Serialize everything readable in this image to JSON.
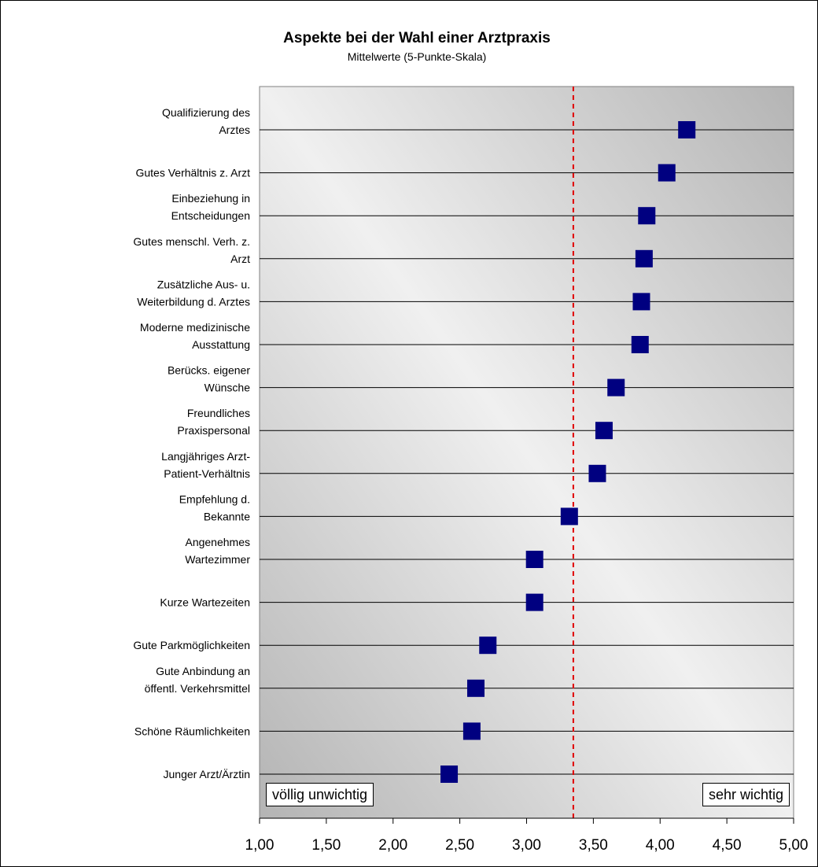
{
  "chart_data": {
    "type": "scatter",
    "title": "Aspekte bei der Wahl einer Arztpraxis",
    "subtitle": "Mittelwerte (5-Punkte-Skala)",
    "categories": [
      [
        "Qualifizierung des",
        "Arztes"
      ],
      [
        "Gutes Verhältnis z. Arzt"
      ],
      [
        "Einbeziehung in",
        "Entscheidungen"
      ],
      [
        "Gutes menschl. Verh. z.",
        "Arzt"
      ],
      [
        "Zusätzliche Aus- u.",
        "Weiterbildung d. Arztes"
      ],
      [
        "Moderne medizinische",
        "Ausstattung"
      ],
      [
        "Berücks. eigener",
        "Wünsche"
      ],
      [
        "Freundliches",
        "Praxispersonal"
      ],
      [
        "Langjähriges Arzt-",
        "Patient-Verhältnis"
      ],
      [
        "Empfehlung d.",
        "Bekannte"
      ],
      [
        "Angenehmes",
        "Wartezimmer"
      ],
      [
        "Kurze Wartezeiten"
      ],
      [
        "Gute Parkmöglichkeiten"
      ],
      [
        "Gute Anbindung an",
        "öffentl. Verkehrsmittel"
      ],
      [
        "Schöne Räumlichkeiten"
      ],
      [
        "Junger Arzt/Ärztin"
      ]
    ],
    "values": [
      4.2,
      4.05,
      3.9,
      3.88,
      3.86,
      3.85,
      3.67,
      3.58,
      3.53,
      3.32,
      3.06,
      3.06,
      2.71,
      2.62,
      2.59,
      2.42
    ],
    "mean_line": 3.35,
    "xlim": [
      1.0,
      5.0
    ],
    "xticks": [
      "1,00",
      "1,50",
      "2,00",
      "2,50",
      "3,00",
      "3,50",
      "4,00",
      "4,50",
      "5,00"
    ],
    "left_label": "völlig unwichtig",
    "right_label": "sehr wichtig",
    "grid": true,
    "colors": {
      "marker": "#000080",
      "mean_line": "#e00000",
      "plot_dark": "#b4b4b4",
      "plot_light": "#f0f0f0"
    }
  }
}
